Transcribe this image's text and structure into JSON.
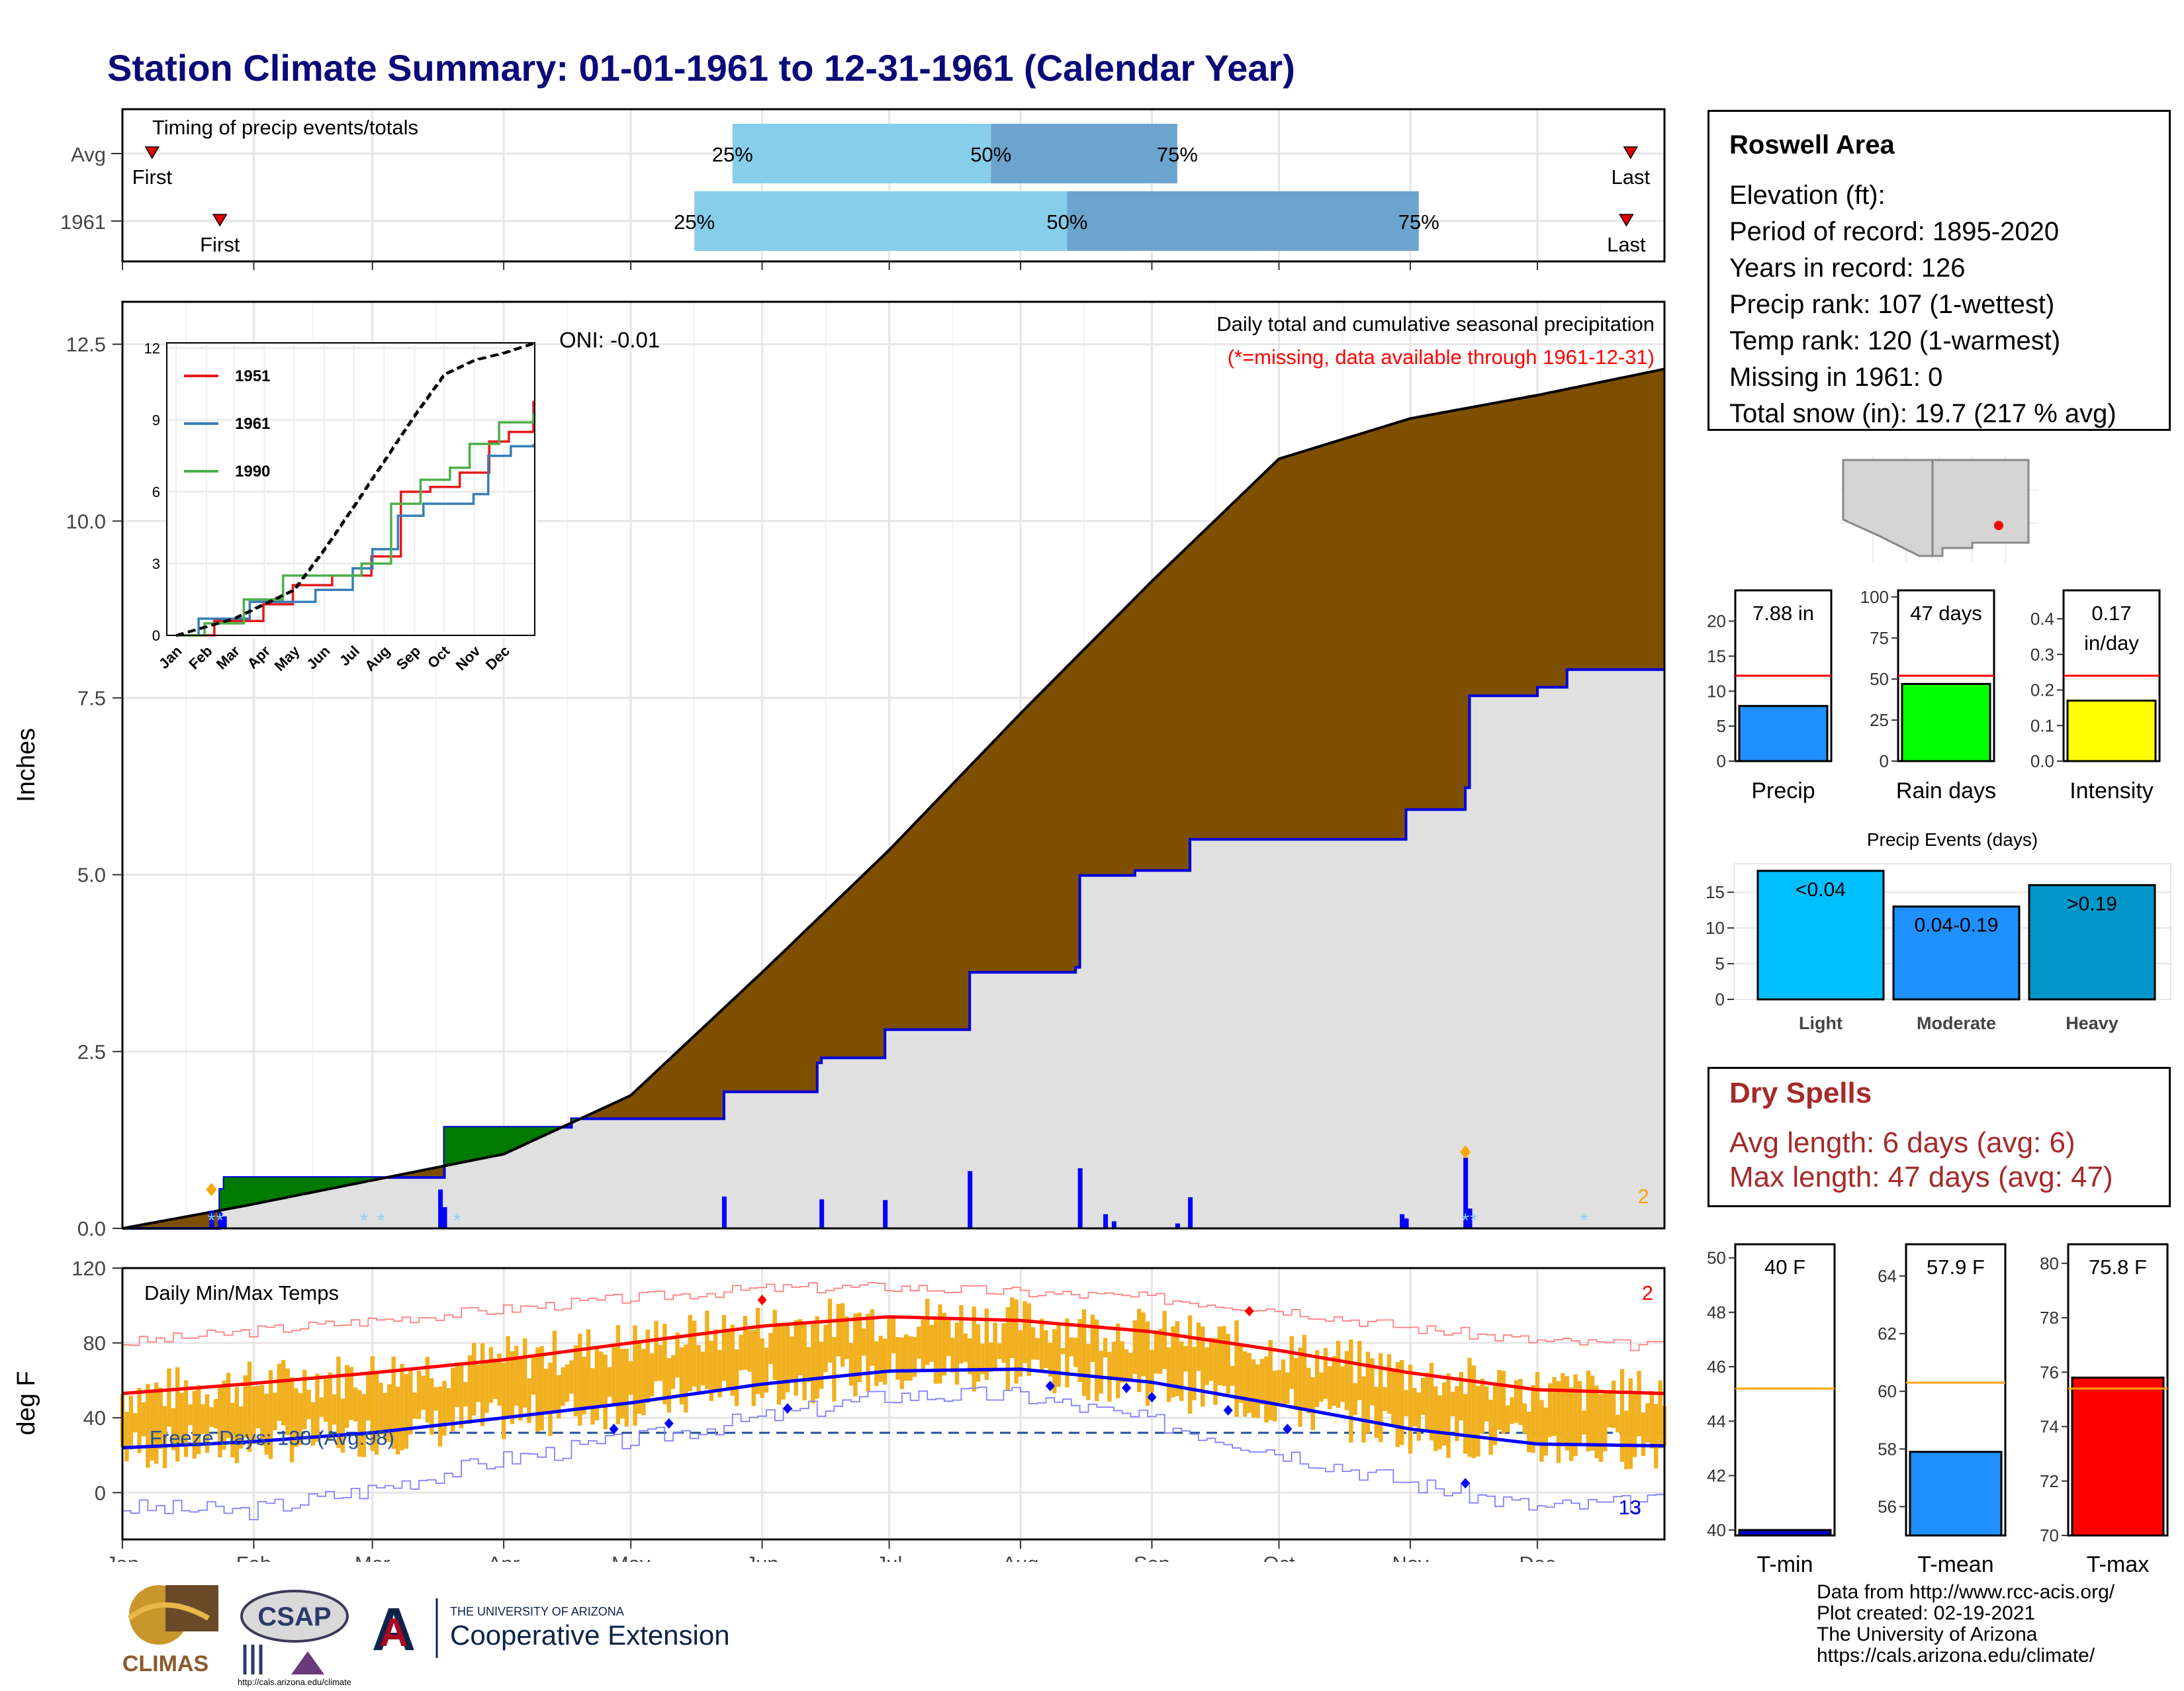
{
  "title": "Station Climate Summary: 01-01-1961 to 12-31-1961 (Calendar Year)",
  "timing": {
    "label": "Timing of precip events/totals",
    "rows": [
      {
        "name": "Avg",
        "first_doy": 8,
        "last_doy": 357,
        "p25_doy": 145,
        "p50_doy": 206,
        "p75_doy": 250
      },
      {
        "name": "1961",
        "first_doy": 24,
        "last_doy": 356,
        "p25_doy": 136,
        "p50_doy": 224,
        "p75_doy": 307
      }
    ],
    "first_label": "First",
    "last_label": "Last",
    "p25_label": "25%",
    "p50_label": "50%",
    "p75_label": "75%"
  },
  "info": {
    "station": "Roswell Area",
    "lines": [
      "Elevation (ft):",
      "Period of record: 1895-2020",
      "Years in record: 126",
      "Precip rank: 107 (1-wettest)",
      "Temp rank: 120 (1-warmest)",
      "Missing in 1961: 0",
      "Total snow (in): 19.7 (217 % avg)"
    ]
  },
  "precip_panel": {
    "ylabel": "Inches",
    "title": "Daily total and cumulative seasonal precipitation",
    "subtitle": "(*=missing, data available through 1961-12-31)",
    "oni": "ONI: -0.01",
    "corner_count": "2",
    "y_ticks": [
      "0.0",
      "2.5",
      "5.0",
      "7.5",
      "10.0",
      "12.5"
    ],
    "colors": {
      "avg_fill": "#7f4f00",
      "above_fill": "#007a00",
      "obs_fill": "#e0e0e0",
      "obs_line": "#0000dd",
      "daily": "#0000ff"
    }
  },
  "chart_data": [
    {
      "type": "area",
      "name": "cumulative_precip",
      "ylim": [
        0,
        13.1
      ],
      "xlim_doy": [
        1,
        365
      ],
      "avg_cumulative": {
        "doy": [
          1,
          30,
          60,
          91,
          121,
          152,
          182,
          213,
          244,
          274,
          305,
          335,
          365
        ],
        "values": [
          0,
          0.32,
          0.68,
          1.05,
          1.88,
          3.62,
          5.35,
          7.28,
          9.15,
          10.88,
          11.45,
          11.78,
          12.15
        ]
      },
      "observed_cumulative": {
        "doy": [
          1,
          22,
          24,
          25,
          55,
          76,
          77,
          107,
          142,
          143,
          165,
          166,
          180,
          181,
          201,
          226,
          227,
          240,
          252,
          253,
          303,
          304,
          318,
          319,
          335,
          342,
          365
        ],
        "values": [
          0,
          0,
          0.55,
          0.72,
          0.72,
          0.72,
          1.43,
          1.55,
          1.55,
          1.93,
          2.34,
          2.41,
          2.41,
          2.81,
          3.62,
          3.69,
          4.99,
          5.06,
          5.06,
          5.5,
          5.5,
          5.92,
          6.23,
          7.53,
          7.65,
          7.9,
          7.9
        ]
      },
      "daily": {
        "doy": [
          22,
          24,
          25,
          76,
          77,
          143,
          166,
          181,
          201,
          227,
          233,
          235,
          250,
          253,
          303,
          304,
          318,
          319
        ],
        "values": [
          0.25,
          0.22,
          0.17,
          0.55,
          0.3,
          0.45,
          0.41,
          0.4,
          0.81,
          0.85,
          0.2,
          0.1,
          0.07,
          0.44,
          0.2,
          0.14,
          1.0,
          0.28
        ]
      }
    },
    {
      "type": "line",
      "name": "inset_cumulative",
      "xlabels": [
        "Jan",
        "Feb",
        "Mar",
        "Apr",
        "May",
        "Jun",
        "Jul",
        "Aug",
        "Sep",
        "Oct",
        "Nov",
        "Dec"
      ],
      "y_ticks": [
        0,
        3,
        6,
        9,
        12
      ],
      "series": [
        {
          "name": "1951",
          "color": "#e41a1c",
          "doy": [
            1,
            40,
            90,
            120,
            160,
            200,
            230,
            260,
            290,
            320,
            340,
            365
          ],
          "values": [
            0,
            0.6,
            1.3,
            2.1,
            2.5,
            3.3,
            6.0,
            6.2,
            6.8,
            8.1,
            8.5,
            9.8
          ]
        },
        {
          "name": "1961",
          "color": "#377eb8",
          "doy": [
            1,
            24,
            76,
            143,
            181,
            201,
            227,
            253,
            304,
            319,
            342,
            365
          ],
          "values": [
            0,
            0.7,
            1.4,
            1.9,
            2.8,
            3.6,
            5.0,
            5.5,
            5.9,
            7.5,
            7.9,
            8.0
          ]
        },
        {
          "name": "1990",
          "color": "#4daf4a",
          "doy": [
            1,
            30,
            70,
            110,
            150,
            190,
            220,
            250,
            280,
            300,
            330,
            365
          ],
          "values": [
            0,
            0.5,
            1.5,
            2.5,
            2.5,
            3.0,
            5.5,
            6.5,
            7.0,
            8.0,
            8.9,
            9.3
          ]
        },
        {
          "name": "avg",
          "color": "#000000",
          "doy": [
            1,
            60,
            121,
            152,
            182,
            213,
            244,
            274,
            305,
            335,
            365
          ],
          "values": [
            0,
            0.7,
            1.9,
            3.6,
            5.4,
            7.3,
            9.2,
            10.9,
            11.5,
            11.8,
            12.2
          ]
        }
      ]
    },
    {
      "type": "bar",
      "name": "daily_temps",
      "ylim": [
        -25,
        120
      ],
      "y_ticks": [
        0,
        40,
        80,
        120
      ],
      "normal_max": {
        "doy": [
          1,
          30,
          60,
          91,
          121,
          152,
          182,
          213,
          244,
          274,
          305,
          335,
          365
        ],
        "values": [
          53,
          58,
          64,
          71,
          80,
          89,
          94,
          92,
          86,
          76,
          64,
          55,
          53
        ]
      },
      "normal_min": {
        "doy": [
          1,
          30,
          60,
          91,
          121,
          152,
          182,
          213,
          244,
          274,
          305,
          335,
          365
        ],
        "values": [
          24,
          27,
          32,
          40,
          48,
          58,
          65,
          66,
          59,
          47,
          34,
          26,
          25
        ]
      },
      "record_max": {
        "doy": [
          1,
          30,
          60,
          91,
          121,
          152,
          182,
          213,
          244,
          274,
          305,
          335,
          365
        ],
        "values": [
          80,
          86,
          92,
          98,
          104,
          109,
          110,
          107,
          104,
          98,
          88,
          81,
          78
        ]
      },
      "record_min": {
        "doy": [
          1,
          30,
          60,
          91,
          121,
          152,
          182,
          213,
          244,
          274,
          305,
          335,
          365
        ],
        "values": [
          -8,
          -10,
          2,
          18,
          28,
          40,
          52,
          52,
          38,
          22,
          5,
          -8,
          -5
        ]
      },
      "freeze_line": 32,
      "freeze_label": "Freeze Days: 138 (Avg:98)",
      "record_high_count": "2",
      "record_low_count": "13"
    },
    {
      "type": "bar",
      "name": "summary_precip",
      "bars": [
        {
          "label": "Precip",
          "value": 7.88,
          "avg": 12.2,
          "ylim": [
            0,
            24.4
          ],
          "ticks": [
            0,
            5,
            10,
            15,
            20
          ],
          "color": "#1e90ff",
          "text": "7.88 in"
        },
        {
          "label": "Rain days",
          "value": 47,
          "avg": 52,
          "ylim": [
            0,
            104
          ],
          "ticks": [
            0,
            25,
            50,
            75,
            100
          ],
          "color": "#00ff00",
          "text": "47 days"
        },
        {
          "label": "Intensity",
          "value": 0.17,
          "avg": 0.24,
          "ylim": [
            0,
            0.48
          ],
          "ticks": [
            0.0,
            0.1,
            0.2,
            0.3,
            0.4
          ],
          "color": "#ffff00",
          "text": "0.17 in/day"
        }
      ]
    },
    {
      "type": "bar",
      "name": "precip_events",
      "title": "Precip Events (days)",
      "categories": [
        "Light",
        "Moderate",
        "Heavy"
      ],
      "values": [
        18,
        13,
        16
      ],
      "labels": [
        "<0.04",
        "0.04-0.19",
        ">0.19"
      ],
      "colors": [
        "#00bfff",
        "#1e90ff",
        "#0096c8"
      ],
      "ylim": [
        0,
        19
      ],
      "ticks": [
        0,
        5,
        10,
        15
      ]
    },
    {
      "type": "bar",
      "name": "summary_temps",
      "bars": [
        {
          "label": "T-min",
          "value": 40.0,
          "avg": 45.2,
          "ylim": [
            39.8,
            50.5
          ],
          "ticks": [
            40,
            42,
            44,
            46,
            48,
            50
          ],
          "color": "#0000cd",
          "text": "40 F"
        },
        {
          "label": "T-mean",
          "value": 57.9,
          "avg": 60.3,
          "ylim": [
            55,
            65.1
          ],
          "ticks": [
            56,
            58,
            60,
            62,
            64
          ],
          "color": "#1e90ff",
          "text": "57.9 F"
        },
        {
          "label": "T-max",
          "value": 75.8,
          "avg": 75.4,
          "ylim": [
            70,
            80.7
          ],
          "ticks": [
            70,
            72,
            74,
            76,
            78,
            80
          ],
          "color": "#ff0000",
          "text": "75.8 F"
        }
      ]
    }
  ],
  "temp_panel": {
    "ylabel": "deg F",
    "title": "Daily Min/Max Temps"
  },
  "months": [
    "Jan",
    "Feb",
    "Mar",
    "Apr",
    "May",
    "Jun",
    "Jul",
    "Aug",
    "Sep",
    "Oct",
    "Nov",
    "Dec"
  ],
  "dry_spells": {
    "title": "Dry Spells",
    "avg": "Avg length: 6 days (avg: 6)",
    "max": "Max length: 47 days (avg: 47)"
  },
  "credits": [
    "Data from http://www.rcc-acis.org/",
    "Plot created: 02-19-2021",
    "The University of Arizona",
    "https://cals.arizona.edu/climate/"
  ],
  "logos": {
    "climas": "CLIMAS",
    "csap": "CSAP",
    "csap_url": "http://cals.arizona.edu/climate",
    "ua_line1": "THE UNIVERSITY OF ARIZONA",
    "ua_line2": "Cooperative Extension"
  }
}
